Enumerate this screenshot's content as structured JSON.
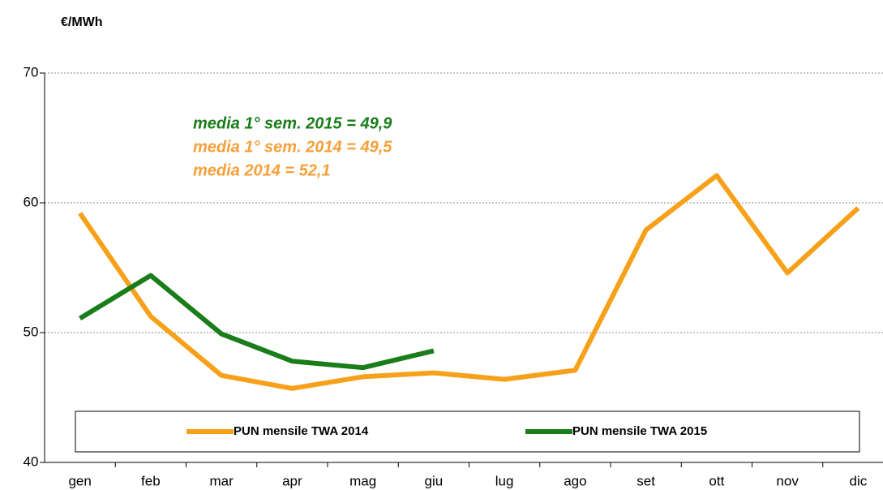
{
  "chart_data": {
    "type": "line",
    "y_label": "€/MWh",
    "categories": [
      "gen",
      "feb",
      "mar",
      "apr",
      "mag",
      "giu",
      "lug",
      "ago",
      "set",
      "ott",
      "nov",
      "dic"
    ],
    "series": [
      {
        "name": "PUN mensile TWA  2014",
        "color": "#f7a11a",
        "values": [
          59.2,
          51.25,
          46.7,
          45.7,
          46.6,
          46.9,
          46.4,
          47.1,
          57.9,
          62.1,
          54.6,
          59.6
        ]
      },
      {
        "name": "PUN mensile TWA  2015",
        "color": "#1a7d1a",
        "values": [
          51.1,
          54.4,
          49.9,
          47.8,
          47.3,
          48.6,
          null,
          null,
          null,
          null,
          null,
          null
        ]
      }
    ],
    "annotations": [
      {
        "text": "media 1° sem. 2015 = 49,9",
        "color": "#1a7d1a"
      },
      {
        "text": "media 1° sem. 2014 = 49,5",
        "color": "#f7a03a"
      },
      {
        "text": "media 2014 = 52,1",
        "color": "#f7a03a"
      }
    ],
    "ylim": [
      40,
      70
    ],
    "yticks": [
      40,
      50,
      60,
      70
    ],
    "grid": true,
    "legend": "bottom"
  }
}
